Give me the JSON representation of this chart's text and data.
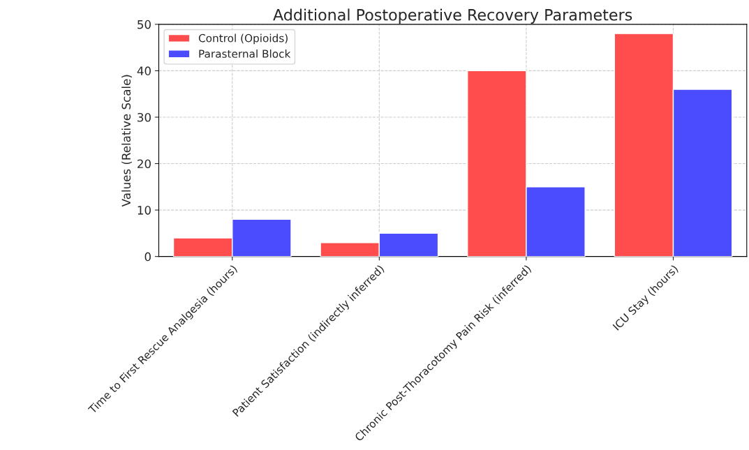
{
  "chart_data": {
    "type": "bar",
    "title": "Additional Postoperative Recovery Parameters",
    "ylabel": "Values (Relative Scale)",
    "categories": [
      "Time to First Rescue Analgesia (hours)",
      "Patient Satisfaction (indirectly inferred)",
      "Chronic Post-Thoracotomy Pain Risk (inferred)",
      "ICU Stay (hours)"
    ],
    "series": [
      {
        "name": "Control (Opioids)",
        "color": "#ff4c4c",
        "values": [
          4,
          3,
          40,
          48
        ]
      },
      {
        "name": "Parasternal Block",
        "color": "#4c4cff",
        "values": [
          8,
          5,
          15,
          36
        ]
      }
    ],
    "ylim": [
      0,
      50
    ],
    "yticks": [
      0,
      10,
      20,
      30,
      40,
      50
    ],
    "grid": true,
    "legend": "top left"
  }
}
